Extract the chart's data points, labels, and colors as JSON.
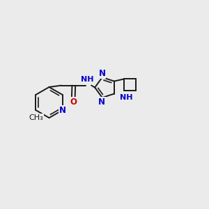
{
  "bg_color": "#ebebeb",
  "bond_color": "#1a1a1a",
  "n_color": "#0000cc",
  "o_color": "#cc0000",
  "lw": 1.4,
  "lw_inner": 1.2,
  "figsize": [
    3.0,
    3.0
  ],
  "dpi": 100,
  "xlim": [
    0,
    10
  ],
  "ylim": [
    0,
    10
  ]
}
